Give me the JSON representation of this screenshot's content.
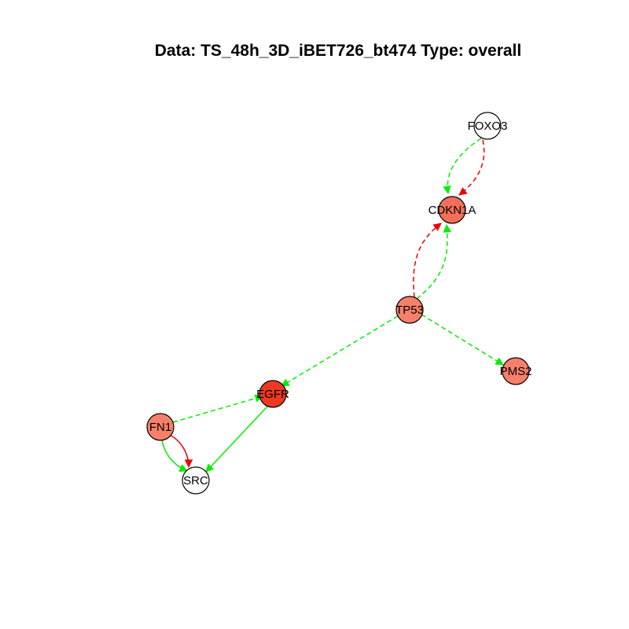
{
  "title": "Data: TS_48h_3D_iBET726_bt474 Type: overall",
  "colors": {
    "activation": "#00ee00",
    "inhibition": "#ee0000",
    "node_stroke": "#000000"
  },
  "nodes": [
    {
      "id": "FOXO3",
      "label": "FOXO3",
      "fill": "#ffffff"
    },
    {
      "id": "CDKN1A",
      "label": "CDKN1A",
      "fill": "#f36f5a"
    },
    {
      "id": "TP53",
      "label": "TP53",
      "fill": "#f6806b"
    },
    {
      "id": "PMS2",
      "label": "PMS2",
      "fill": "#f6806b"
    },
    {
      "id": "EGFR",
      "label": "EGFR",
      "fill": "#ee3820"
    },
    {
      "id": "FN1",
      "label": "FN1",
      "fill": "#f6806b"
    },
    {
      "id": "SRC",
      "label": "SRC",
      "fill": "#ffffff"
    }
  ],
  "edges": [
    {
      "from": "FOXO3",
      "to": "CDKN1A",
      "color": "activation",
      "style": "dashed"
    },
    {
      "from": "FOXO3",
      "to": "CDKN1A",
      "color": "inhibition",
      "style": "dashed"
    },
    {
      "from": "TP53",
      "to": "CDKN1A",
      "color": "inhibition",
      "style": "dashed"
    },
    {
      "from": "TP53",
      "to": "CDKN1A",
      "color": "activation",
      "style": "dashed"
    },
    {
      "from": "TP53",
      "to": "PMS2",
      "color": "activation",
      "style": "dashed"
    },
    {
      "from": "TP53",
      "to": "EGFR",
      "color": "activation",
      "style": "dashed"
    },
    {
      "from": "FN1",
      "to": "EGFR",
      "color": "activation",
      "style": "dashed"
    },
    {
      "from": "EGFR",
      "to": "SRC",
      "color": "activation",
      "style": "solid"
    },
    {
      "from": "FN1",
      "to": "SRC",
      "color": "activation",
      "style": "solid"
    },
    {
      "from": "FN1",
      "to": "SRC",
      "color": "inhibition",
      "style": "solid"
    }
  ]
}
